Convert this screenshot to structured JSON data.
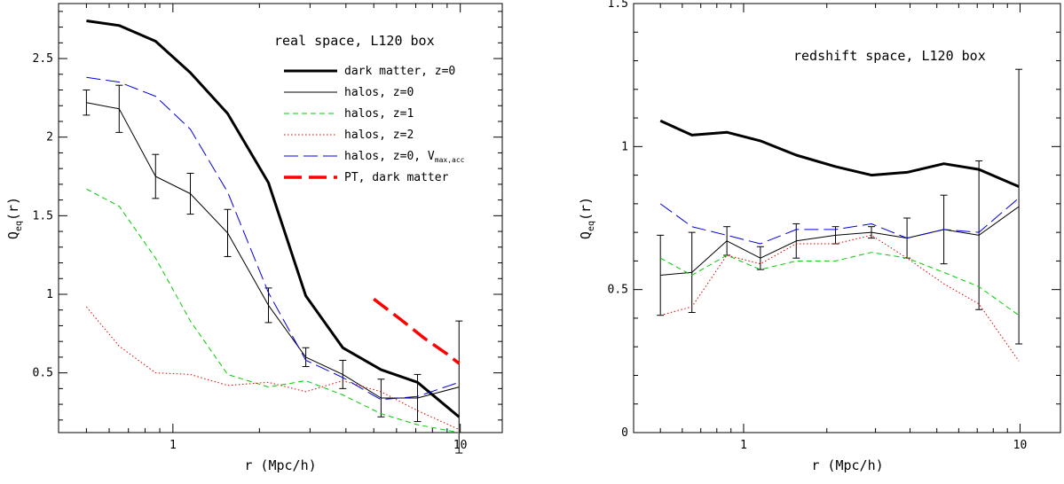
{
  "chart_data": [
    {
      "type": "line",
      "title": "real space, L120 box",
      "xlabel": "r (Mpc/h)",
      "ylabel": "Q_eq(r)",
      "xscale": "log",
      "xlim": [
        0.4,
        14.0
      ],
      "ylim": [
        0.12,
        2.85
      ],
      "xticks": [
        1,
        10
      ],
      "xtick_labels": [
        "1",
        "10"
      ],
      "yticks": [
        0.5,
        1,
        1.5,
        2,
        2.5
      ],
      "ytick_labels": [
        "0.5",
        "1",
        "1.5",
        "2",
        "2.5"
      ],
      "legend_position": "top-right",
      "series": [
        {
          "name": "dark matter, z=0",
          "color": "#000000",
          "style": "thick",
          "x": [
            0.5,
            0.65,
            0.87,
            1.15,
            1.55,
            2.15,
            2.9,
            3.9,
            5.3,
            7.1,
            9.9
          ],
          "y": [
            2.74,
            2.71,
            2.61,
            2.41,
            2.15,
            1.71,
            0.99,
            0.66,
            0.52,
            0.44,
            0.22
          ]
        },
        {
          "name": "halos, z=0",
          "color": "#000000",
          "style": "thin",
          "errorbars": true,
          "x": [
            0.5,
            0.65,
            0.87,
            1.15,
            1.55,
            2.15,
            2.9,
            3.9,
            5.3,
            7.1,
            9.9
          ],
          "y": [
            2.22,
            2.18,
            1.75,
            1.64,
            1.39,
            0.93,
            0.6,
            0.49,
            0.34,
            0.34,
            0.41
          ],
          "yerr": [
            0.08,
            0.15,
            0.14,
            0.13,
            0.15,
            0.11,
            0.06,
            0.09,
            0.12,
            0.15,
            0.42
          ]
        },
        {
          "name": "halos, z=1",
          "color": "#00cc00",
          "style": "dashed",
          "x": [
            0.5,
            0.65,
            0.87,
            1.15,
            1.55,
            2.15,
            2.9,
            3.9,
            5.3,
            7.1,
            9.9
          ],
          "y": [
            1.67,
            1.56,
            1.23,
            0.83,
            0.49,
            0.41,
            0.45,
            0.36,
            0.24,
            0.17,
            0.12
          ]
        },
        {
          "name": "halos, z=2",
          "color": "#dd0000",
          "style": "dotted",
          "x": [
            0.5,
            0.65,
            0.87,
            1.15,
            1.55,
            2.15,
            2.9,
            3.9,
            5.3,
            7.1,
            9.9
          ],
          "y": [
            0.92,
            0.67,
            0.5,
            0.49,
            0.42,
            0.44,
            0.38,
            0.45,
            0.38,
            0.26,
            0.14
          ]
        },
        {
          "name": "halos, z=0, V",
          "name_subscript": "max,acc",
          "color": "#0000dd",
          "style": "longdash",
          "x": [
            0.5,
            0.65,
            0.87,
            1.15,
            1.55,
            2.15,
            2.9,
            3.9,
            5.3,
            7.1,
            9.9
          ],
          "y": [
            2.38,
            2.35,
            2.26,
            2.05,
            1.65,
            1.01,
            0.58,
            0.47,
            0.33,
            0.35,
            0.44
          ]
        },
        {
          "name": "PT, dark matter",
          "color": "#ff0000",
          "style": "redlongdash",
          "x": [
            5.0,
            6.2,
            7.5,
            9.0,
            9.9
          ],
          "y": [
            0.97,
            0.84,
            0.72,
            0.62,
            0.56
          ]
        }
      ]
    },
    {
      "type": "line",
      "title": "redshift space, L120 box",
      "xlabel": "r (Mpc/h)",
      "ylabel": "Q_eq(r)",
      "xscale": "log",
      "xlim": [
        0.4,
        14.0
      ],
      "ylim": [
        0.0,
        1.5
      ],
      "xticks": [
        1,
        10
      ],
      "xtick_labels": [
        "1",
        "10"
      ],
      "yticks": [
        0,
        0.5,
        1,
        1.5
      ],
      "ytick_labels": [
        "0",
        "0.5",
        "1",
        "1.5"
      ],
      "series": [
        {
          "name": "dark matter, z=0",
          "color": "#000000",
          "style": "thick",
          "x": [
            0.5,
            0.65,
            0.87,
            1.15,
            1.55,
            2.15,
            2.9,
            3.9,
            5.3,
            7.1,
            9.9
          ],
          "y": [
            1.09,
            1.04,
            1.05,
            1.02,
            0.97,
            0.93,
            0.9,
            0.91,
            0.94,
            0.92,
            0.86
          ]
        },
        {
          "name": "halos, z=0",
          "color": "#000000",
          "style": "thin",
          "errorbars": true,
          "x": [
            0.5,
            0.65,
            0.87,
            1.15,
            1.55,
            2.15,
            2.9,
            3.9,
            5.3,
            7.1,
            9.9
          ],
          "y": [
            0.55,
            0.56,
            0.67,
            0.61,
            0.67,
            0.69,
            0.7,
            0.68,
            0.71,
            0.69,
            0.79
          ],
          "yerr": [
            0.14,
            0.14,
            0.05,
            0.04,
            0.06,
            0.03,
            0.02,
            0.07,
            0.12,
            0.26,
            0.48
          ]
        },
        {
          "name": "halos, z=1",
          "color": "#00cc00",
          "style": "dashed",
          "x": [
            0.5,
            0.65,
            0.87,
            1.15,
            1.55,
            2.15,
            2.9,
            3.9,
            5.3,
            7.1,
            9.9
          ],
          "y": [
            0.61,
            0.55,
            0.62,
            0.57,
            0.6,
            0.6,
            0.63,
            0.61,
            0.56,
            0.51,
            0.41
          ]
        },
        {
          "name": "halos, z=2",
          "color": "#dd0000",
          "style": "dotted",
          "x": [
            0.5,
            0.65,
            0.87,
            1.15,
            1.55,
            2.15,
            2.9,
            3.9,
            5.3,
            7.1,
            9.9
          ],
          "y": [
            0.41,
            0.44,
            0.62,
            0.59,
            0.66,
            0.66,
            0.69,
            0.61,
            0.52,
            0.45,
            0.25
          ]
        },
        {
          "name": "halos, z=0, V",
          "name_subscript": "max,acc",
          "color": "#0000dd",
          "style": "longdash",
          "x": [
            0.5,
            0.65,
            0.87,
            1.15,
            1.55,
            2.15,
            2.9,
            3.9,
            5.3,
            7.1,
            9.9
          ],
          "y": [
            0.8,
            0.72,
            0.69,
            0.66,
            0.71,
            0.71,
            0.73,
            0.68,
            0.71,
            0.7,
            0.82
          ]
        }
      ]
    }
  ]
}
